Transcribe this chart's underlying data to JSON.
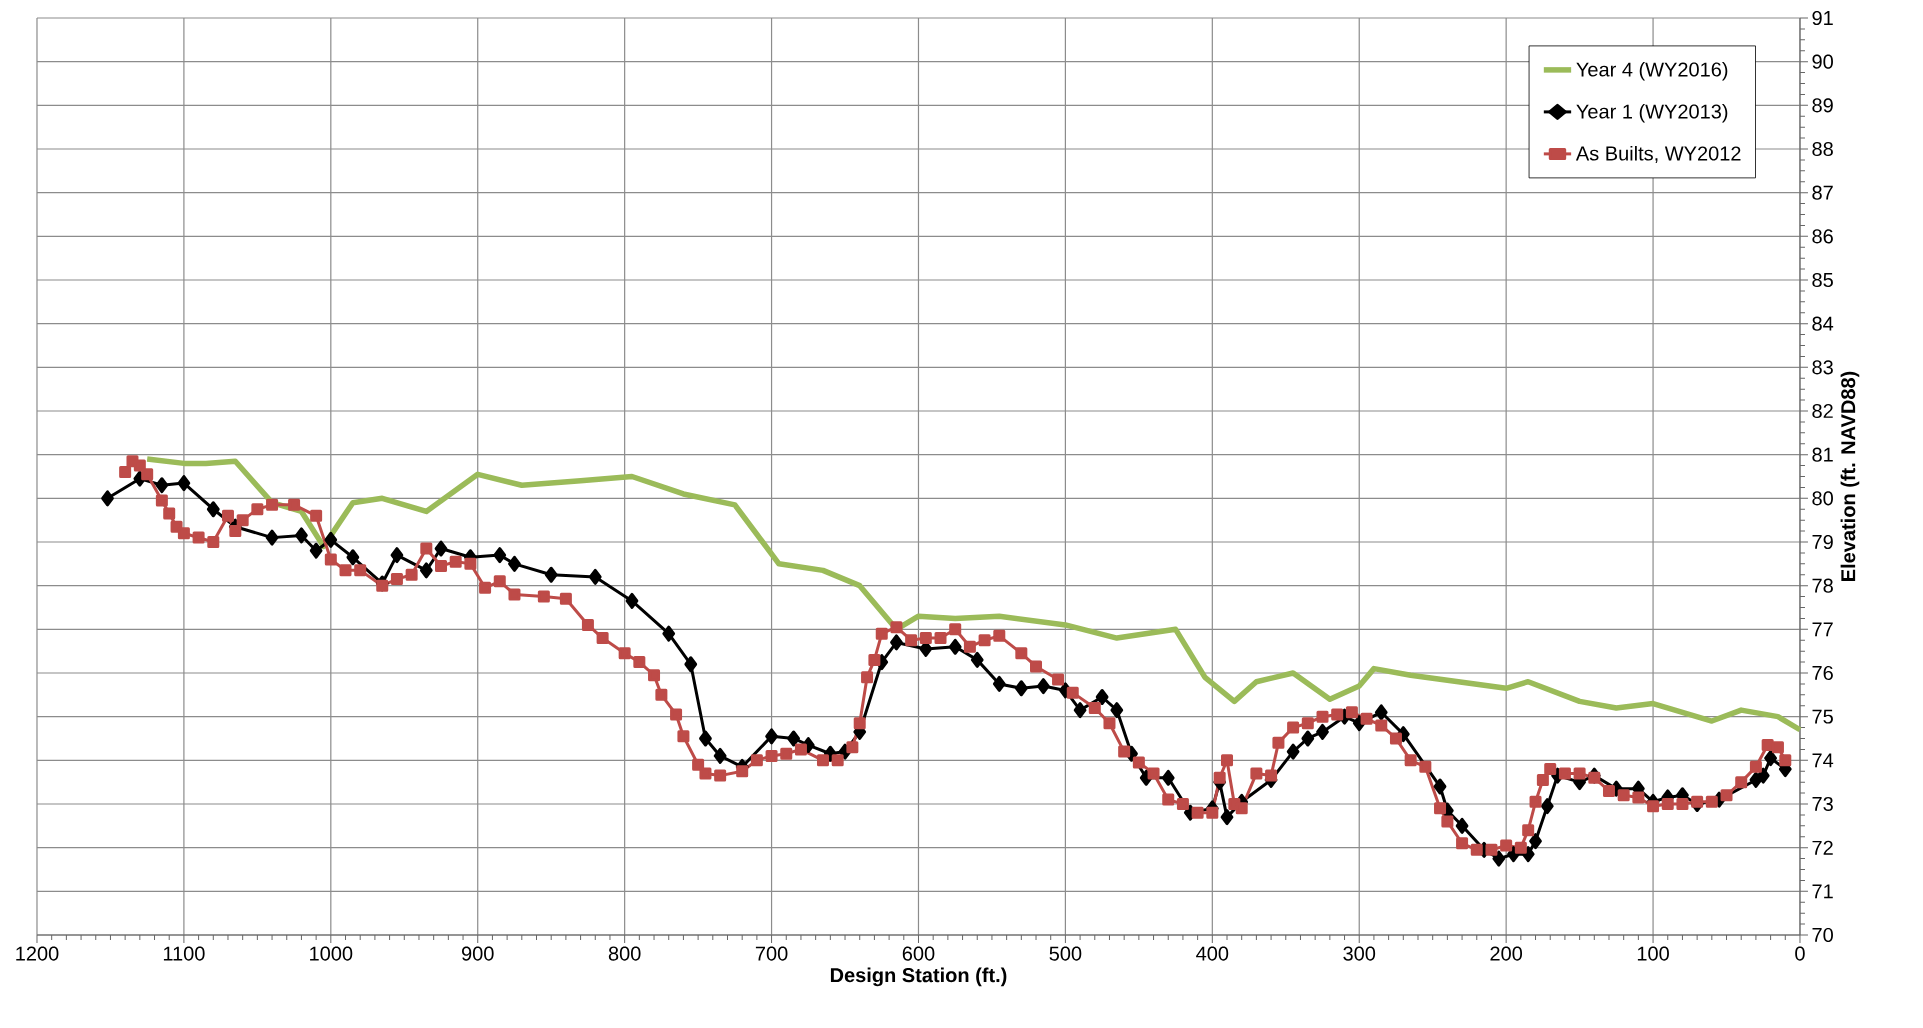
{
  "chart_data": {
    "type": "line",
    "xlabel": "Design Station (ft.)",
    "ylabel": "Elevation (ft. NAVD88)",
    "xlim": [
      1200,
      0
    ],
    "xticks": [
      1200,
      1100,
      1000,
      900,
      800,
      700,
      600,
      500,
      400,
      300,
      200,
      100,
      0
    ],
    "ylim": [
      70,
      91
    ],
    "yticks": [
      70,
      71,
      72,
      73,
      74,
      75,
      76,
      77,
      78,
      79,
      80,
      81,
      82,
      83,
      84,
      85,
      86,
      87,
      88,
      89,
      90,
      91
    ],
    "grid": true,
    "legend": "top right",
    "series": [
      {
        "name": "Year 4 (WY2016)",
        "color": "#9bbb59",
        "marker": "none",
        "x": [
          1125,
          1100,
          1085,
          1065,
          1040,
          1020,
          1005,
          985,
          965,
          935,
          900,
          870,
          830,
          795,
          760,
          725,
          695,
          665,
          640,
          615,
          600,
          575,
          545,
          500,
          465,
          425,
          405,
          385,
          370,
          345,
          320,
          300,
          290,
          265,
          200,
          185,
          150,
          125,
          100,
          60,
          40,
          15,
          0
        ],
        "values": [
          80.9,
          80.8,
          80.8,
          80.85,
          79.9,
          79.7,
          78.9,
          79.9,
          80.0,
          79.7,
          80.55,
          80.3,
          80.4,
          80.5,
          80.1,
          79.85,
          78.5,
          78.35,
          78.0,
          77.0,
          77.3,
          77.25,
          77.3,
          77.1,
          76.8,
          77.0,
          75.9,
          75.35,
          75.8,
          76.0,
          75.4,
          75.7,
          76.1,
          75.95,
          75.65,
          75.8,
          75.35,
          75.2,
          75.3,
          74.9,
          75.15,
          75.0,
          74.7
        ]
      },
      {
        "name": "Year 1 (WY2013)",
        "color": "#000000",
        "marker": "diamond",
        "x": [
          1152,
          1130,
          1115,
          1100,
          1080,
          1065,
          1040,
          1020,
          1010,
          1000,
          985,
          965,
          955,
          935,
          925,
          905,
          885,
          875,
          850,
          820,
          795,
          770,
          755,
          745,
          735,
          720,
          700,
          685,
          675,
          660,
          650,
          640,
          625,
          615,
          595,
          575,
          560,
          545,
          530,
          515,
          500,
          490,
          475,
          465,
          455,
          445,
          430,
          415,
          400,
          395,
          390,
          380,
          360,
          345,
          335,
          325,
          310,
          300,
          285,
          270,
          245,
          240,
          230,
          215,
          205,
          195,
          185,
          180,
          172,
          165,
          150,
          140,
          125,
          110,
          100,
          90,
          80,
          70,
          55,
          30,
          25,
          20,
          10
        ],
        "values": [
          80.0,
          80.45,
          80.3,
          80.35,
          79.75,
          79.35,
          79.1,
          79.15,
          78.8,
          79.05,
          78.65,
          78.05,
          78.7,
          78.35,
          78.85,
          78.65,
          78.7,
          78.5,
          78.25,
          78.2,
          77.65,
          76.9,
          76.2,
          74.5,
          74.1,
          73.85,
          74.55,
          74.5,
          74.35,
          74.15,
          74.2,
          74.65,
          76.25,
          76.7,
          76.55,
          76.6,
          76.3,
          75.75,
          75.65,
          75.7,
          75.6,
          75.15,
          75.45,
          75.15,
          74.15,
          73.6,
          73.6,
          72.8,
          72.9,
          73.5,
          72.7,
          73.05,
          73.55,
          74.2,
          74.5,
          74.65,
          75.0,
          74.85,
          75.1,
          74.6,
          73.4,
          72.85,
          72.5,
          71.95,
          71.75,
          71.85,
          71.85,
          72.15,
          72.95,
          73.65,
          73.5,
          73.65,
          73.35,
          73.35,
          73.05,
          73.15,
          73.2,
          73.0,
          73.1,
          73.55,
          73.65,
          74.05,
          73.8
        ]
      },
      {
        "name": "As Builts, WY2012",
        "color": "#be4b48",
        "marker": "square",
        "x": [
          1140,
          1135,
          1130,
          1125,
          1115,
          1110,
          1105,
          1100,
          1090,
          1080,
          1070,
          1065,
          1060,
          1050,
          1040,
          1025,
          1010,
          1000,
          990,
          980,
          965,
          955,
          945,
          935,
          925,
          915,
          905,
          895,
          885,
          875,
          855,
          840,
          825,
          815,
          800,
          790,
          780,
          775,
          765,
          760,
          750,
          745,
          735,
          720,
          710,
          700,
          690,
          680,
          665,
          655,
          645,
          640,
          635,
          630,
          625,
          615,
          605,
          595,
          585,
          575,
          565,
          555,
          545,
          530,
          520,
          505,
          495,
          480,
          470,
          460,
          450,
          440,
          430,
          420,
          410,
          400,
          395,
          390,
          385,
          380,
          370,
          360,
          355,
          345,
          335,
          325,
          315,
          305,
          295,
          285,
          275,
          265,
          255,
          245,
          240,
          230,
          220,
          210,
          200,
          190,
          185,
          180,
          175,
          170,
          160,
          150,
          140,
          130,
          120,
          110,
          100,
          90,
          80,
          70,
          60,
          50,
          40,
          30,
          22,
          15,
          10
        ],
        "values": [
          80.6,
          80.85,
          80.75,
          80.55,
          79.95,
          79.65,
          79.35,
          79.2,
          79.1,
          79.0,
          79.6,
          79.25,
          79.5,
          79.75,
          79.85,
          79.85,
          79.6,
          78.6,
          78.35,
          78.35,
          78.0,
          78.15,
          78.25,
          78.85,
          78.45,
          78.55,
          78.5,
          77.95,
          78.1,
          77.8,
          77.75,
          77.7,
          77.1,
          76.8,
          76.45,
          76.25,
          75.95,
          75.5,
          75.05,
          74.55,
          73.9,
          73.7,
          73.65,
          73.75,
          74.0,
          74.1,
          74.15,
          74.25,
          74.0,
          74.0,
          74.3,
          74.85,
          75.9,
          76.3,
          76.9,
          77.05,
          76.75,
          76.8,
          76.8,
          77.0,
          76.6,
          76.75,
          76.85,
          76.45,
          76.15,
          75.85,
          75.55,
          75.2,
          74.85,
          74.2,
          73.95,
          73.7,
          73.1,
          73.0,
          72.8,
          72.8,
          73.6,
          74.0,
          73.0,
          72.9,
          73.7,
          73.65,
          74.4,
          74.75,
          74.85,
          75.0,
          75.05,
          75.1,
          74.95,
          74.8,
          74.5,
          74.0,
          73.85,
          72.9,
          72.6,
          72.1,
          71.95,
          71.95,
          72.05,
          72.0,
          72.4,
          73.05,
          73.55,
          73.8,
          73.7,
          73.7,
          73.6,
          73.3,
          73.2,
          73.15,
          72.95,
          73.0,
          73.0,
          73.05,
          73.05,
          73.2,
          73.5,
          73.85,
          74.35,
          74.3,
          74.0
        ]
      }
    ]
  }
}
